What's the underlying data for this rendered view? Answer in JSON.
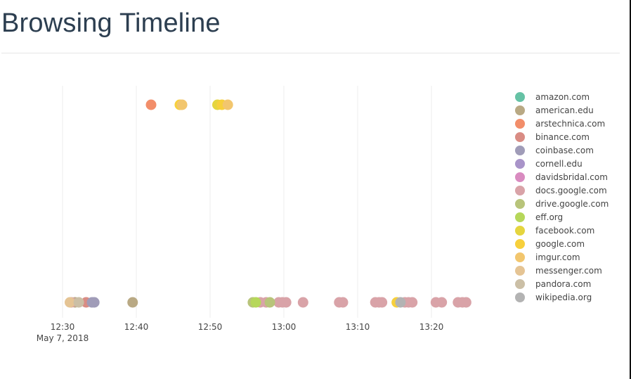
{
  "page": {
    "title": "Browsing Timeline"
  },
  "chart_data": {
    "type": "scatter",
    "title": "Browsing Timeline",
    "xlabel": "",
    "ylabel": "",
    "x_axis": {
      "type": "time",
      "range": [
        "2018-05-07 12:30",
        "2018-05-07 13:29"
      ],
      "ticks": [
        {
          "value": "2018-05-07 12:30",
          "label": "12:30",
          "sublabel": "May 7, 2018"
        },
        {
          "value": "2018-05-07 12:40",
          "label": "12:40"
        },
        {
          "value": "2018-05-07 12:50",
          "label": "12:50"
        },
        {
          "value": "2018-05-07 13:00",
          "label": "13:00"
        },
        {
          "value": "2018-05-07 13:10",
          "label": "13:10"
        },
        {
          "value": "2018-05-07 13:20",
          "label": "13:20"
        }
      ]
    },
    "y_axis": {
      "visible": false,
      "lanes": [
        "top",
        "bottom"
      ]
    },
    "grid": {
      "vertical": true,
      "horizontal": false
    },
    "legend": {
      "placement": "right"
    },
    "series": [
      {
        "name": "amazon.com",
        "color": "#66c2a5",
        "points": []
      },
      {
        "name": "american.edu",
        "color": "#b9a984",
        "points": [
          {
            "x": "2018-05-07 12:31.7",
            "lane": "bottom"
          },
          {
            "x": "2018-05-07 12:39.5",
            "lane": "bottom"
          }
        ]
      },
      {
        "name": "arstechnica.com",
        "color": "#f28e6a",
        "points": [
          {
            "x": "2018-05-07 12:42.0",
            "lane": "top"
          }
        ]
      },
      {
        "name": "binance.com",
        "color": "#d98c84",
        "points": [
          {
            "x": "2018-05-07 12:33.2",
            "lane": "bottom"
          }
        ]
      },
      {
        "name": "coinbase.com",
        "color": "#a09cb8",
        "points": [
          {
            "x": "2018-05-07 12:34.0",
            "lane": "bottom"
          },
          {
            "x": "2018-05-07 12:34.3",
            "lane": "bottom"
          }
        ]
      },
      {
        "name": "cornell.edu",
        "color": "#a994c9",
        "points": []
      },
      {
        "name": "davidsbridal.com",
        "color": "#d98bc0",
        "points": []
      },
      {
        "name": "docs.google.com",
        "color": "#d9a3a8",
        "points": [
          {
            "x": "2018-05-07 12:31.2",
            "lane": "bottom"
          },
          {
            "x": "2018-05-07 12:56.8",
            "lane": "bottom"
          },
          {
            "x": "2018-05-07 12:57.6",
            "lane": "bottom"
          },
          {
            "x": "2018-05-07 12:59.3",
            "lane": "bottom"
          },
          {
            "x": "2018-05-07 12:59.8",
            "lane": "bottom"
          },
          {
            "x": "2018-05-07 13:00.3",
            "lane": "bottom"
          },
          {
            "x": "2018-05-07 13:02.6",
            "lane": "bottom"
          },
          {
            "x": "2018-05-07 13:07.5",
            "lane": "bottom"
          },
          {
            "x": "2018-05-07 13:08.0",
            "lane": "bottom"
          },
          {
            "x": "2018-05-07 13:12.4",
            "lane": "bottom"
          },
          {
            "x": "2018-05-07 13:12.9",
            "lane": "bottom"
          },
          {
            "x": "2018-05-07 13:13.3",
            "lane": "bottom"
          },
          {
            "x": "2018-05-07 13:16.4",
            "lane": "bottom"
          },
          {
            "x": "2018-05-07 13:16.9",
            "lane": "bottom"
          },
          {
            "x": "2018-05-07 13:17.4",
            "lane": "bottom"
          },
          {
            "x": "2018-05-07 13:20.6",
            "lane": "bottom"
          },
          {
            "x": "2018-05-07 13:21.4",
            "lane": "bottom"
          },
          {
            "x": "2018-05-07 13:23.6",
            "lane": "bottom"
          },
          {
            "x": "2018-05-07 13:24.2",
            "lane": "bottom"
          },
          {
            "x": "2018-05-07 13:24.7",
            "lane": "bottom"
          }
        ]
      },
      {
        "name": "drive.google.com",
        "color": "#b8c47a",
        "points": [
          {
            "x": "2018-05-07 12:55.8",
            "lane": "bottom"
          },
          {
            "x": "2018-05-07 12:58.1",
            "lane": "bottom"
          }
        ]
      },
      {
        "name": "eff.org",
        "color": "#b6d75a",
        "points": [
          {
            "x": "2018-05-07 12:56.2",
            "lane": "bottom"
          }
        ]
      },
      {
        "name": "facebook.com",
        "color": "#e5d53f",
        "points": [
          {
            "x": "2018-05-07 12:51.0",
            "lane": "top"
          }
        ]
      },
      {
        "name": "google.com",
        "color": "#f7d03c",
        "points": [
          {
            "x": "2018-05-07 12:45.9",
            "lane": "top"
          },
          {
            "x": "2018-05-07 12:51.6",
            "lane": "top"
          },
          {
            "x": "2018-05-07 13:15.3",
            "lane": "bottom"
          }
        ]
      },
      {
        "name": "imgur.com",
        "color": "#f2c66e",
        "points": [
          {
            "x": "2018-05-07 12:46.2",
            "lane": "top"
          },
          {
            "x": "2018-05-07 12:52.4",
            "lane": "top"
          }
        ]
      },
      {
        "name": "messenger.com",
        "color": "#e5c494",
        "points": [
          {
            "x": "2018-05-07 12:31.0",
            "lane": "bottom"
          }
        ]
      },
      {
        "name": "pandora.com",
        "color": "#cbbfa6",
        "points": [
          {
            "x": "2018-05-07 12:32.2",
            "lane": "bottom"
          }
        ]
      },
      {
        "name": "wikipedia.org",
        "color": "#b3b3b3",
        "points": [
          {
            "x": "2018-05-07 13:15.8",
            "lane": "bottom"
          }
        ]
      }
    ]
  }
}
